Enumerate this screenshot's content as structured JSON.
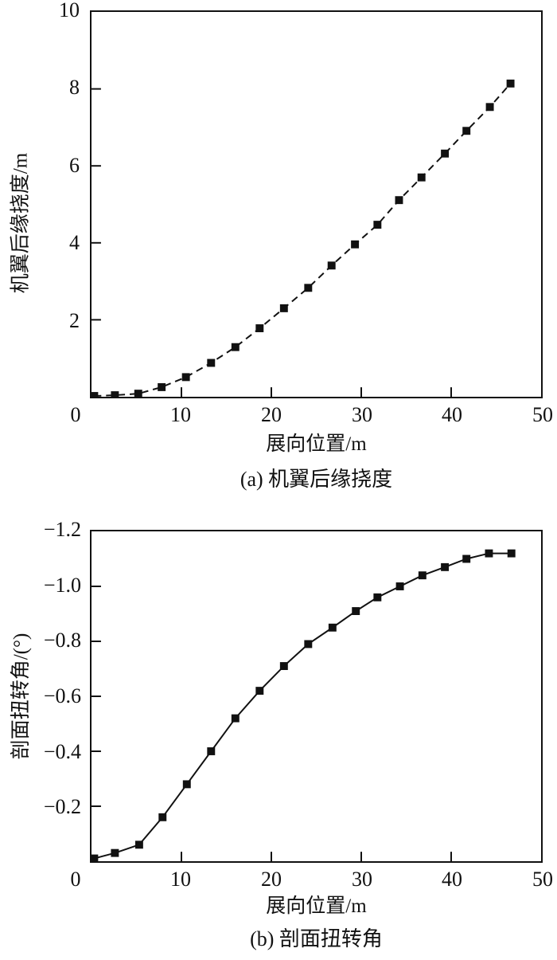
{
  "figure": {
    "background": "#ffffff",
    "axis_color": "#111111",
    "series_color": "#111111"
  },
  "chart_data": [
    {
      "type": "line",
      "caption": "(a) 机翼后缘挠度",
      "xlabel": "展向位置/m",
      "ylabel": "机翼后缘挠度/m",
      "xlim": [
        0,
        50
      ],
      "ylim": [
        0,
        10
      ],
      "grid": false,
      "legend": "none",
      "line_style": "dashed",
      "marker": "square",
      "color": "#111111",
      "x_tick_labels": [
        "0",
        "10",
        "20",
        "30",
        "40",
        "50"
      ],
      "y_tick_labels": [
        "10",
        "8",
        "6",
        "4",
        "2"
      ],
      "x_tick_marks": [
        10,
        20,
        30,
        40
      ],
      "y_tick_marks": [
        2,
        4,
        6,
        8
      ],
      "x": [
        0.3,
        2.6,
        5.2,
        7.8,
        10.5,
        13.3,
        16.0,
        18.7,
        21.4,
        24.1,
        26.7,
        29.3,
        31.8,
        34.2,
        36.7,
        39.3,
        41.7,
        44.3,
        46.6
      ],
      "y": [
        0.02,
        0.04,
        0.08,
        0.25,
        0.51,
        0.88,
        1.29,
        1.78,
        2.3,
        2.83,
        3.41,
        3.96,
        4.47,
        5.11,
        5.7,
        6.32,
        6.91,
        7.53,
        8.14
      ]
    },
    {
      "type": "line",
      "caption": "(b) 剖面扭转角",
      "xlabel": "展向位置/m",
      "ylabel": "剖面扭转角/(°)",
      "xlim": [
        0,
        50
      ],
      "ylim": [
        0,
        -1.2
      ],
      "grid": false,
      "legend": "none",
      "line_style": "solid",
      "marker": "square",
      "color": "#111111",
      "x_tick_labels": [
        "0",
        "10",
        "20",
        "30",
        "40",
        "50"
      ],
      "y_tick_labels": [
        "−1.2",
        "−1.0",
        "−0.8",
        "−0.6",
        "−0.4",
        "−0.2"
      ],
      "x_tick_marks": [
        10,
        20,
        30,
        40
      ],
      "y_tick_marks": [
        -0.2,
        -0.4,
        -0.6,
        -0.8,
        -1.0
      ],
      "x": [
        0.3,
        2.6,
        5.3,
        7.9,
        10.6,
        13.3,
        16.0,
        18.7,
        21.4,
        24.1,
        26.8,
        29.4,
        31.8,
        34.3,
        36.8,
        39.3,
        41.7,
        44.2,
        46.7
      ],
      "y": [
        -0.01,
        -0.03,
        -0.06,
        -0.16,
        -0.28,
        -0.4,
        -0.52,
        -0.62,
        -0.71,
        -0.79,
        -0.85,
        -0.91,
        -0.96,
        -1.0,
        -1.04,
        -1.07,
        -1.1,
        -1.12,
        -1.12
      ]
    }
  ]
}
